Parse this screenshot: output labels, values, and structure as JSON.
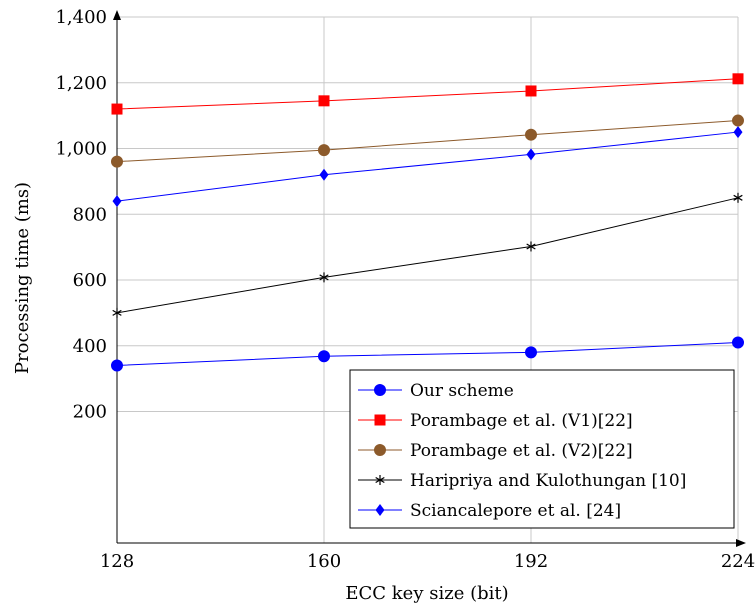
{
  "chart_data": {
    "type": "line",
    "title": "",
    "xlabel": "ECC key size (bit)",
    "ylabel": "Processing time (ms)",
    "x": [
      128,
      160,
      192,
      224
    ],
    "xlim": [
      128,
      224
    ],
    "ylim": [
      -200,
      1400
    ],
    "x_tick_labels": [
      "128",
      "160",
      "192",
      "224"
    ],
    "y_ticks": [
      200,
      400,
      600,
      800,
      1000,
      1200,
      1400
    ],
    "y_tick_labels": [
      "200",
      "400",
      "600",
      "800",
      "1,000",
      "1,200",
      "1,400"
    ],
    "grid": true,
    "legend_position": "bottom-right",
    "series": [
      {
        "name": "Our scheme",
        "values": [
          340,
          368,
          380,
          410
        ],
        "color": "#0000ff",
        "marker": "circle"
      },
      {
        "name": "Porambage et al. (V1)[22]",
        "values": [
          1120,
          1145,
          1175,
          1212
        ],
        "color": "#ff0000",
        "marker": "square"
      },
      {
        "name": "Porambage et al. (V2)[22]",
        "values": [
          960,
          995,
          1042,
          1085
        ],
        "color": "#8c5a2b",
        "marker": "circle"
      },
      {
        "name": "Haripriya and Kulothungan [10]",
        "values": [
          500,
          608,
          702,
          850
        ],
        "color": "#000000",
        "marker": "star"
      },
      {
        "name": "Sciancalepore et al. [24]",
        "values": [
          840,
          920,
          982,
          1050
        ],
        "color": "#0000ff",
        "marker": "diamond"
      }
    ]
  }
}
